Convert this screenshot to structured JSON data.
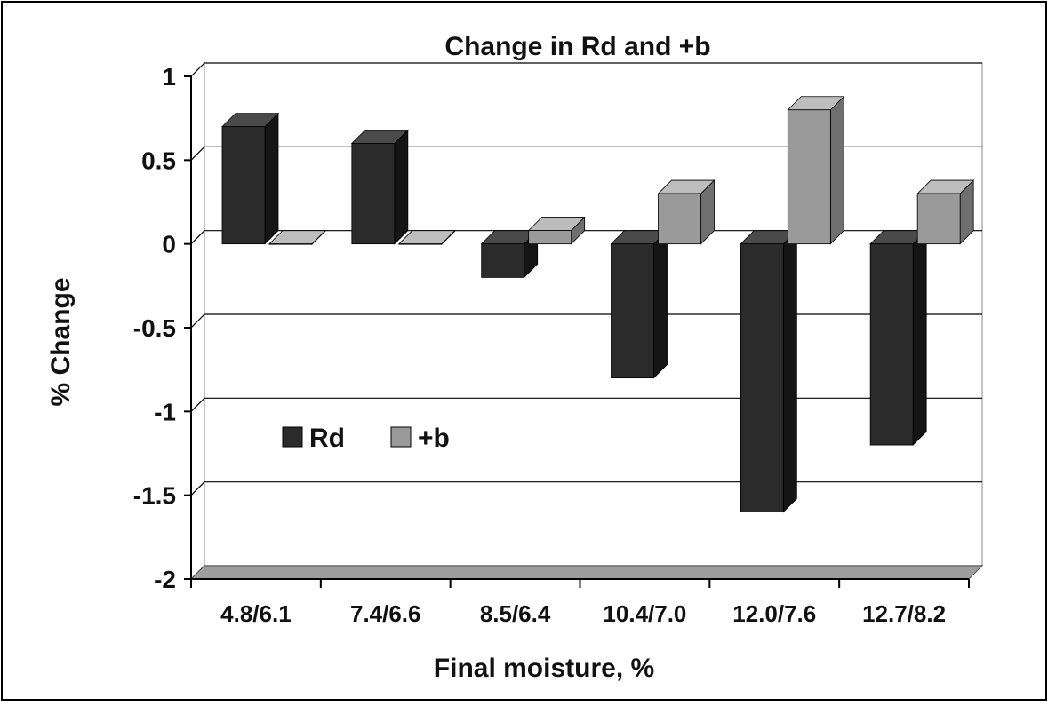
{
  "chart_data": {
    "type": "bar",
    "title": "Change in Rd and +b",
    "xlabel": "Final moisture, %",
    "ylabel": "% Change",
    "categories": [
      "4.8/6.1",
      "7.4/6.6",
      "8.5/6.4",
      "10.4/7.0",
      "12.0/7.6",
      "12.7/8.2"
    ],
    "series": [
      {
        "name": "Rd",
        "values": [
          0.7,
          0.6,
          -0.2,
          -0.8,
          -1.6,
          -1.2
        ]
      },
      {
        "name": "+b",
        "values": [
          0.0,
          0.0,
          0.08,
          0.3,
          0.8,
          0.3
        ]
      }
    ],
    "ylim": [
      -2,
      1
    ],
    "yticks": [
      "1",
      "0.5",
      "0",
      "-0.5",
      "-1",
      "-1.5",
      "-2"
    ],
    "grid": true,
    "legend_position": "inside-left",
    "colors": {
      "Rd_front": "#2b2b2b",
      "Rd_top": "#4a4a4a",
      "Rd_side": "#151515",
      "b_front": "#9a9a9a",
      "b_top": "#bdbdbd",
      "b_side": "#6f6f6f",
      "grid": "#000000",
      "floor": "#9e9e9e"
    }
  }
}
